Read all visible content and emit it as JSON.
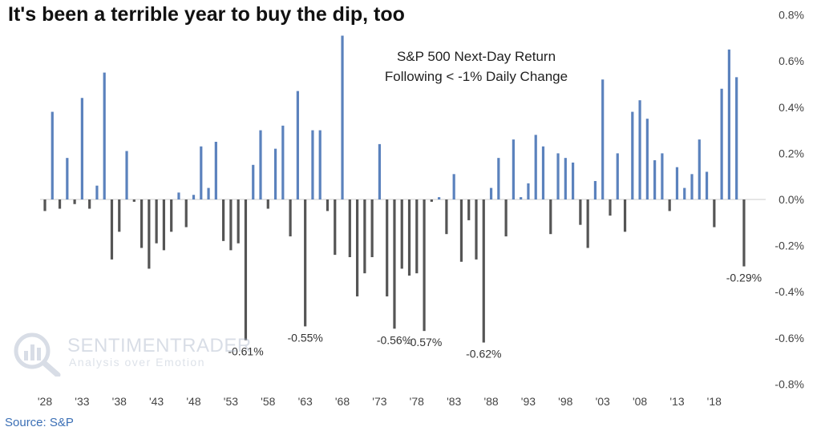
{
  "headline": "It's been a terrible year to buy the dip, too",
  "source": "Source: S&P",
  "watermark": {
    "name": "SENTIMENTRADER",
    "tagline": "Analysis over Emotion"
  },
  "colors": {
    "positive": "#5b82bd",
    "negative": "#555555",
    "axis": "#cccccc"
  },
  "chart_data": {
    "type": "bar",
    "legend_title_lines": [
      "S&P 500 Next-Day Return",
      "Following < -1% Daily Change"
    ],
    "x_tick_labels": [
      "'28",
      "'33",
      "'38",
      "'43",
      "'48",
      "'53",
      "'58",
      "'63",
      "'68",
      "'73",
      "'78",
      "'83",
      "'88",
      "'93",
      "'98",
      "'03",
      "'08",
      "'13",
      "'18"
    ],
    "y_tick_labels": [
      "0.8%",
      "0.6%",
      "0.4%",
      "0.2%",
      "0.0%",
      "-0.2%",
      "-0.4%",
      "-0.6%",
      "-0.8%"
    ],
    "ylim": [
      -0.8,
      0.8
    ],
    "y_axis_position": "right",
    "grid": false,
    "x_start_year": 1928,
    "categories": [
      "1928",
      "1929",
      "1930",
      "1931",
      "1932",
      "1933",
      "1934",
      "1935",
      "1936",
      "1937",
      "1938",
      "1939",
      "1940",
      "1941",
      "1942",
      "1943",
      "1944",
      "1945",
      "1946",
      "1947",
      "1948",
      "1949",
      "1950",
      "1951",
      "1952",
      "1953",
      "1954",
      "1955",
      "1956",
      "1957",
      "1958",
      "1959",
      "1960",
      "1961",
      "1962",
      "1963",
      "1964",
      "1965",
      "1966",
      "1967",
      "1968",
      "1969",
      "1970",
      "1971",
      "1972",
      "1973",
      "1974",
      "1975",
      "1976",
      "1977",
      "1978",
      "1979",
      "1980",
      "1981",
      "1982",
      "1983",
      "1984",
      "1985",
      "1986",
      "1987",
      "1988",
      "1989",
      "1990",
      "1991",
      "1992",
      "1993",
      "1994",
      "1995",
      "1996",
      "1997",
      "1998",
      "1999",
      "2000",
      "2001",
      "2002",
      "2003",
      "2004",
      "2005",
      "2006",
      "2007",
      "2008",
      "2009",
      "2010",
      "2011",
      "2012",
      "2013",
      "2014",
      "2015",
      "2016",
      "2017",
      "2018",
      "2019",
      "2020",
      "2021",
      "2022"
    ],
    "values": [
      -0.05,
      0.38,
      -0.04,
      0.18,
      -0.02,
      0.44,
      -0.04,
      0.06,
      0.55,
      -0.26,
      -0.14,
      0.21,
      -0.01,
      -0.21,
      -0.3,
      -0.19,
      -0.22,
      -0.14,
      0.03,
      -0.12,
      0.02,
      0.23,
      0.05,
      0.25,
      -0.18,
      -0.22,
      -0.19,
      -0.61,
      0.15,
      0.3,
      -0.04,
      0.22,
      0.32,
      -0.16,
      0.47,
      -0.55,
      0.3,
      0.3,
      -0.05,
      -0.24,
      0.71,
      -0.25,
      -0.42,
      -0.32,
      -0.25,
      0.24,
      -0.42,
      -0.56,
      -0.3,
      -0.33,
      -0.32,
      -0.57,
      -0.01,
      0.01,
      -0.15,
      0.11,
      -0.27,
      -0.09,
      -0.26,
      -0.62,
      0.05,
      0.18,
      -0.16,
      0.26,
      0.01,
      0.07,
      0.28,
      0.23,
      -0.15,
      0.2,
      0.18,
      0.16,
      -0.11,
      -0.21,
      0.08,
      0.52,
      -0.07,
      0.2,
      -0.14,
      0.38,
      0.43,
      0.35,
      0.17,
      0.2,
      -0.05,
      0.14,
      0.05,
      0.11,
      0.26,
      0.12,
      -0.12,
      0.48,
      0.65,
      0.53,
      -0.29
    ],
    "annotations": [
      {
        "index": 27,
        "text": "-0.61%"
      },
      {
        "index": 35,
        "text": "-0.55%"
      },
      {
        "index": 47,
        "text": "-0.56%"
      },
      {
        "index": 51,
        "text": "-0.57%"
      },
      {
        "index": 59,
        "text": "-0.62%"
      },
      {
        "index": 94,
        "text": "-0.29%"
      }
    ]
  }
}
